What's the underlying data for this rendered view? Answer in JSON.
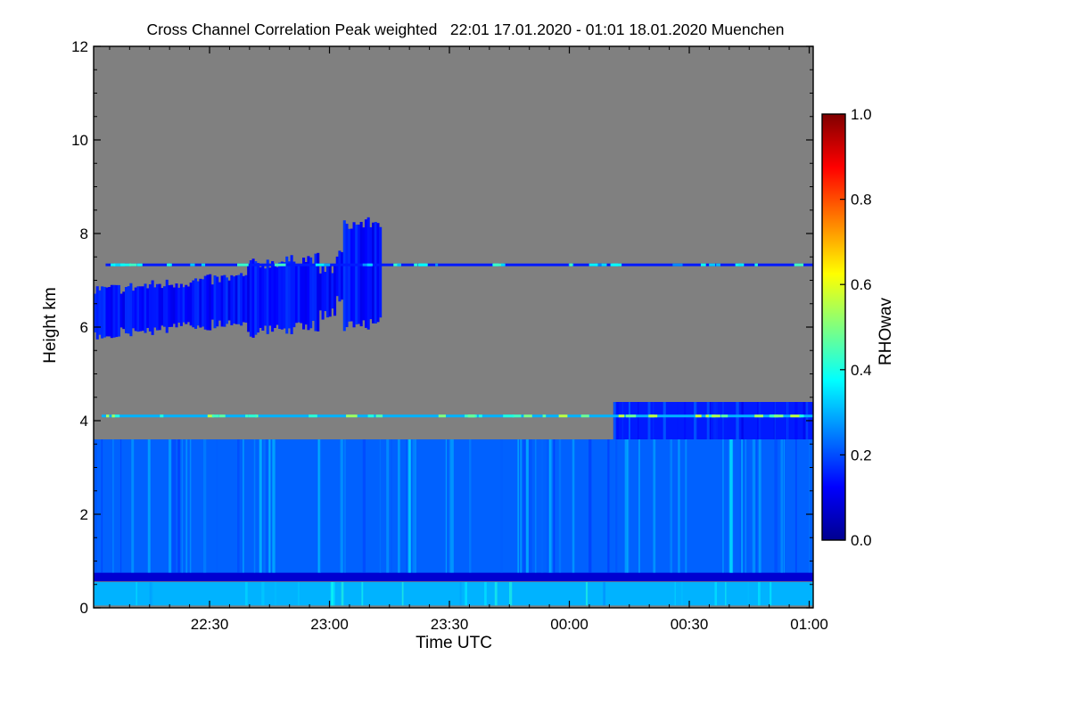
{
  "chart_data": {
    "type": "heatmap",
    "title": "Cross Channel Correlation Peak weighted   22:01 17.01.2020 - 01:01 18.01.2020 Muenchen",
    "xlabel": "Time UTC",
    "ylabel": "Height km",
    "x_range_min": [
      0,
      180
    ],
    "x_ticks": [
      {
        "value": 29,
        "label": "22:30"
      },
      {
        "value": 59,
        "label": "23:00"
      },
      {
        "value": 89,
        "label": "23:30"
      },
      {
        "value": 119,
        "label": "00:00"
      },
      {
        "value": 149,
        "label": "00:30"
      },
      {
        "value": 179,
        "label": "01:00"
      }
    ],
    "y_range_km": [
      0,
      12
    ],
    "y_ticks": [
      0,
      2,
      4,
      6,
      8,
      10,
      12
    ],
    "colorbar": {
      "label": "RHOwav",
      "range": [
        0.0,
        1.0
      ],
      "ticks": [
        "0.0",
        "0.2",
        "0.4",
        "0.6",
        "0.8",
        "1.0"
      ],
      "colormap": "jet",
      "no_data_color": "#808080"
    },
    "features": [
      {
        "name": "surface layer",
        "min_start": 0,
        "min_end": 180,
        "km_bottom": 0.05,
        "km_top": 0.55,
        "rho": 0.3
      },
      {
        "name": "dark band",
        "min_start": 0,
        "min_end": 180,
        "km_center": 0.68,
        "rho": 0.08
      },
      {
        "name": "boundary layer",
        "min_start": 0,
        "min_end": 180,
        "km_bottom": 0.75,
        "km_top": 3.6,
        "rho": 0.22
      },
      {
        "name": "elevated layer",
        "min_start": 130,
        "min_end": 180,
        "km_bottom": 3.6,
        "km_top": 4.4,
        "rho": 0.15
      },
      {
        "name": "cirrus cloud",
        "min_start": 0,
        "min_end": 72,
        "km_bottom": 5.8,
        "km_top": 7.8,
        "rho": 0.1
      },
      {
        "name": "thin layer 7.3 km",
        "min_start": 3,
        "min_end": 180,
        "km_center": 7.33,
        "rho": 0.15
      },
      {
        "name": "thin layer 4.1 km",
        "min_start": 2,
        "min_end": 180,
        "km_center": 4.1,
        "rho": 0.3
      }
    ]
  },
  "colors": {
    "no_data": "#808080",
    "axis": "#000000"
  }
}
